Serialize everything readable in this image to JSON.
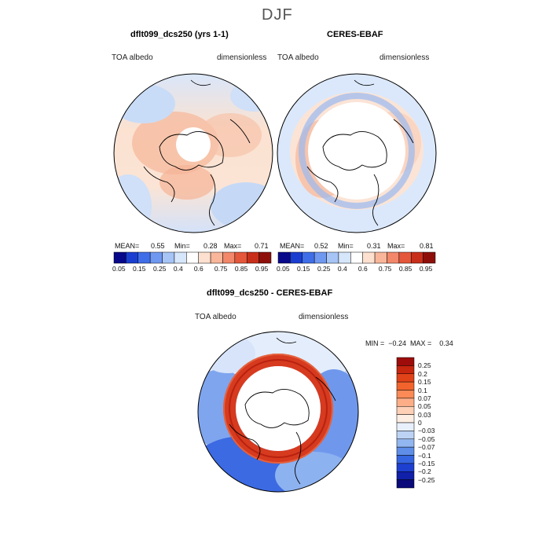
{
  "figure": {
    "season": "DJF"
  },
  "panels": [
    {
      "title": "dflt099_dcs250 (yrs 1-1)",
      "left_label": "TOA albedo",
      "right_label": "dimensionless",
      "stats": {
        "mean_label": "MEAN=",
        "mean": "0.55",
        "min_label": "Min=",
        "min": "0.28",
        "max_label": "Max=",
        "max": "0.71"
      }
    },
    {
      "title": "CERES-EBAF",
      "left_label": "TOA albedo",
      "right_label": "dimensionless",
      "stats": {
        "mean_label": "MEAN=",
        "mean": "0.52",
        "min_label": "Min=",
        "min": "0.31",
        "max_label": "Max=",
        "max": "0.81"
      }
    },
    {
      "title": "dflt099_dcs250 - CERES-EBAF",
      "left_label": "TOA albedo",
      "right_label": "dimensionless",
      "stats_line": "MIN =  −0.24  MAX =    0.34"
    }
  ],
  "colorbar_abs": {
    "ticks": [
      "0.05",
      "0.15",
      "0.25",
      "0.4",
      "0.6",
      "0.75",
      "0.85",
      "0.95"
    ],
    "colors": [
      "#08088a",
      "#1a3fd0",
      "#3f6ee8",
      "#6f98f0",
      "#a6c4f5",
      "#d6e6fb",
      "#ffffff",
      "#fde0cf",
      "#f9b69a",
      "#f2876a",
      "#e4573a",
      "#c82f1b",
      "#8e0f0a"
    ]
  },
  "colorbar_diff": {
    "ticks": [
      "0.25",
      "0.2",
      "0.15",
      "0.1",
      "0.07",
      "0.05",
      "0.03",
      "0",
      "−0.03",
      "−0.05",
      "−0.07",
      "−0.1",
      "−0.15",
      "−0.2",
      "−0.25"
    ],
    "colors": [
      "#9e0d0b",
      "#c7260f",
      "#e14319",
      "#f3642c",
      "#fb8a57",
      "#fdae87",
      "#fed0b6",
      "#fdeee4",
      "#e8f0fb",
      "#bcd3f4",
      "#92b6ef",
      "#5e8ee8",
      "#3565e0",
      "#1e40d0",
      "#1020a8",
      "#0a0a7a"
    ]
  },
  "map_colors": {
    "base_top": "#fbe3d3",
    "base_bottom": "#dbe8fb",
    "orange_patch": "#f5b395",
    "blue_patch": "#bcd3f4",
    "ring_red": "#dc3a1e",
    "ring_dark": "#b8220f",
    "diff_blue": "#4a78e4",
    "diff_deep_blue": "#1f45d6",
    "diff_light": "#e6eefb"
  }
}
